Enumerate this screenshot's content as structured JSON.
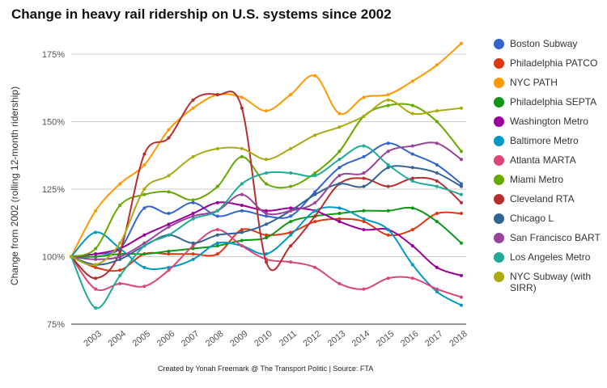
{
  "chart_data": {
    "type": "line",
    "title": "Change in heavy rail ridership on U.S. systems since 2002",
    "xlabel": "",
    "ylabel": "Change from 2002 (rolling 12-month ridership)",
    "ylim": [
      75,
      180
    ],
    "yticks": [
      "75%",
      "100%",
      "125%",
      "150%",
      "175%"
    ],
    "ytick_values": [
      75,
      100,
      125,
      150,
      175
    ],
    "grid": "horizontal",
    "legend_position": "right",
    "source": "Created by Yonah Freemark @ The Transport Politic | Source: FTA",
    "categories": [
      "2003",
      "2004",
      "2005",
      "2006",
      "2007",
      "2008",
      "2009",
      "2010",
      "2011",
      "2012",
      "2013",
      "2014",
      "2015",
      "2016",
      "2017",
      "2018"
    ],
    "series": [
      {
        "name": "Boston Subway",
        "color": "#3366cc",
        "x": [
          2002,
          2003,
          2004,
          2005,
          2006,
          2007,
          2008,
          2009,
          2010,
          2011,
          2012,
          2013,
          2014,
          2015,
          2016,
          2017,
          2018
        ],
        "values": [
          100,
          101,
          103,
          118,
          116,
          120,
          115,
          117,
          115,
          115,
          124,
          133,
          137,
          142,
          138,
          134,
          127
        ]
      },
      {
        "name": "Philadelphia PATCO",
        "color": "#dc3912",
        "x": [
          2002,
          2003,
          2004,
          2005,
          2006,
          2007,
          2008,
          2009,
          2010,
          2011,
          2012,
          2013,
          2014,
          2015,
          2016,
          2017,
          2018
        ],
        "values": [
          100,
          96,
          95,
          101,
          101,
          101,
          101,
          110,
          108,
          109,
          113,
          114,
          113,
          108,
          110,
          116,
          116
        ]
      },
      {
        "name": "NYC PATH",
        "color": "#ff9900",
        "x": [
          2002,
          2003,
          2004,
          2005,
          2006,
          2007,
          2008,
          2009,
          2010,
          2011,
          2012,
          2013,
          2014,
          2015,
          2016,
          2017,
          2018
        ],
        "values": [
          100,
          117,
          127,
          134,
          147,
          155,
          160,
          159,
          154,
          160,
          167,
          153,
          159,
          160,
          165,
          171,
          179
        ]
      },
      {
        "name": "Philadelphia SEPTA",
        "color": "#109618",
        "x": [
          2002,
          2003,
          2004,
          2005,
          2006,
          2007,
          2008,
          2009,
          2010,
          2011,
          2012,
          2013,
          2014,
          2015,
          2016,
          2017,
          2018
        ],
        "values": [
          100,
          100,
          101,
          101,
          102,
          103,
          104,
          106,
          107,
          113,
          115,
          116,
          117,
          117,
          118,
          113,
          105
        ]
      },
      {
        "name": "Washington Metro",
        "color": "#990099",
        "x": [
          2002,
          2003,
          2004,
          2005,
          2006,
          2007,
          2008,
          2009,
          2010,
          2011,
          2012,
          2013,
          2014,
          2015,
          2016,
          2017,
          2018
        ],
        "values": [
          100,
          101,
          103,
          108,
          112,
          116,
          120,
          119,
          117,
          118,
          117,
          113,
          110,
          110,
          104,
          96,
          93
        ]
      },
      {
        "name": "Baltimore Metro",
        "color": "#0099c6",
        "x": [
          2002,
          2003,
          2004,
          2005,
          2006,
          2007,
          2008,
          2009,
          2010,
          2011,
          2012,
          2013,
          2014,
          2015,
          2016,
          2017,
          2018
        ],
        "values": [
          100,
          109,
          103,
          96,
          96,
          99,
          105,
          104,
          101,
          108,
          117,
          118,
          114,
          110,
          97,
          87,
          82
        ]
      },
      {
        "name": "Atlanta MARTA",
        "color": "#dd4477",
        "x": [
          2002,
          2003,
          2004,
          2005,
          2006,
          2007,
          2008,
          2009,
          2010,
          2011,
          2012,
          2013,
          2014,
          2015,
          2016,
          2017,
          2018
        ],
        "values": [
          100,
          88,
          90,
          89,
          95,
          104,
          110,
          104,
          99,
          98,
          96,
          90,
          88,
          92,
          92,
          88,
          85
        ]
      },
      {
        "name": "Miami Metro",
        "color": "#66aa00",
        "x": [
          2002,
          2003,
          2004,
          2005,
          2006,
          2007,
          2008,
          2009,
          2010,
          2011,
          2012,
          2013,
          2014,
          2015,
          2016,
          2017,
          2018
        ],
        "values": [
          100,
          103,
          119,
          123,
          124,
          121,
          126,
          137,
          127,
          126,
          131,
          139,
          152,
          156,
          156,
          150,
          139
        ]
      },
      {
        "name": "Cleveland RTA",
        "color": "#b82e2e",
        "x": [
          2002,
          2003,
          2004,
          2005,
          2006,
          2007,
          2008,
          2009,
          2010,
          2011,
          2012,
          2013,
          2014,
          2015,
          2016,
          2017,
          2018
        ],
        "values": [
          100,
          92,
          102,
          138,
          144,
          158,
          160,
          155,
          98,
          104,
          115,
          127,
          129,
          126,
          129,
          128,
          120
        ]
      },
      {
        "name": "Chicago L",
        "color": "#316395",
        "x": [
          2002,
          2003,
          2004,
          2005,
          2006,
          2007,
          2008,
          2009,
          2010,
          2011,
          2012,
          2013,
          2014,
          2015,
          2016,
          2017,
          2018
        ],
        "values": [
          100,
          97,
          99,
          104,
          108,
          105,
          108,
          109,
          112,
          117,
          123,
          127,
          126,
          133,
          133,
          131,
          126
        ]
      },
      {
        "name": "San Francisco BART",
        "color": "#994499",
        "x": [
          2002,
          2003,
          2004,
          2005,
          2006,
          2007,
          2008,
          2009,
          2010,
          2011,
          2012,
          2013,
          2014,
          2015,
          2016,
          2017,
          2018
        ],
        "values": [
          100,
          99,
          100,
          105,
          111,
          115,
          117,
          123,
          116,
          117,
          120,
          130,
          131,
          139,
          141,
          142,
          136
        ]
      },
      {
        "name": "Los Angeles Metro",
        "color": "#22aa99",
        "x": [
          2002,
          2003,
          2004,
          2005,
          2006,
          2007,
          2008,
          2009,
          2010,
          2011,
          2012,
          2013,
          2014,
          2015,
          2016,
          2017,
          2018
        ],
        "values": [
          100,
          81,
          93,
          104,
          108,
          114,
          117,
          127,
          131,
          131,
          130,
          136,
          141,
          134,
          128,
          126,
          123
        ]
      },
      {
        "name": "NYC Subway (with SIRR)",
        "color": "#aaaa11",
        "x": [
          2002,
          2003,
          2004,
          2005,
          2006,
          2007,
          2008,
          2009,
          2010,
          2011,
          2012,
          2013,
          2014,
          2015,
          2016,
          2017,
          2018
        ],
        "values": [
          100,
          97,
          105,
          125,
          130,
          137,
          140,
          140,
          136,
          140,
          145,
          148,
          152,
          158,
          153,
          154,
          155
        ]
      }
    ]
  }
}
